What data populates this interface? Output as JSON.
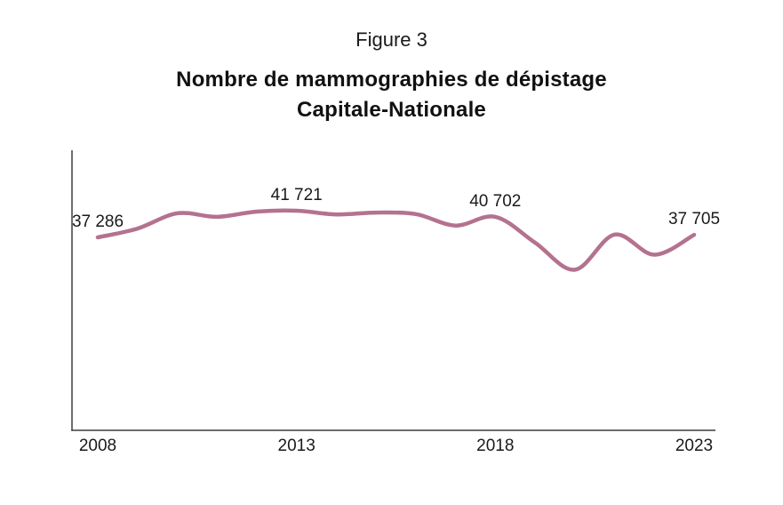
{
  "chart_data": {
    "type": "line",
    "figure_label": "Figure 3",
    "title": "Nombre de mammographies de dépistage",
    "subtitle": "Capitale-Nationale",
    "x": [
      2008,
      2009,
      2010,
      2011,
      2012,
      2013,
      2014,
      2015,
      2016,
      2017,
      2018,
      2019,
      2020,
      2021,
      2022,
      2023
    ],
    "values": [
      37286,
      38750,
      41280,
      40700,
      41570,
      41721,
      41100,
      41400,
      41150,
      39250,
      40702,
      36400,
      31900,
      37750,
      34400,
      37705
    ],
    "labeled_points": [
      {
        "year": 2008,
        "value": 37286,
        "label": "37 286"
      },
      {
        "year": 2013,
        "value": 41721,
        "label": "41 721"
      },
      {
        "year": 2018,
        "value": 40702,
        "label": "40 702"
      },
      {
        "year": 2023,
        "value": 37705,
        "label": "37 705"
      }
    ],
    "x_ticks": [
      {
        "year": 2008,
        "label": "2008"
      },
      {
        "year": 2013,
        "label": "2013"
      },
      {
        "year": 2018,
        "label": "2018"
      },
      {
        "year": 2023,
        "label": "2023"
      }
    ],
    "xlim": [
      2008,
      2023
    ],
    "ylim": [
      30000,
      43000
    ],
    "grid": false,
    "legend": "none",
    "line_color": "#b4728f",
    "axis_color": "#3d3d3d",
    "text_color": "#1a1a1a",
    "background": "#ffffff"
  }
}
